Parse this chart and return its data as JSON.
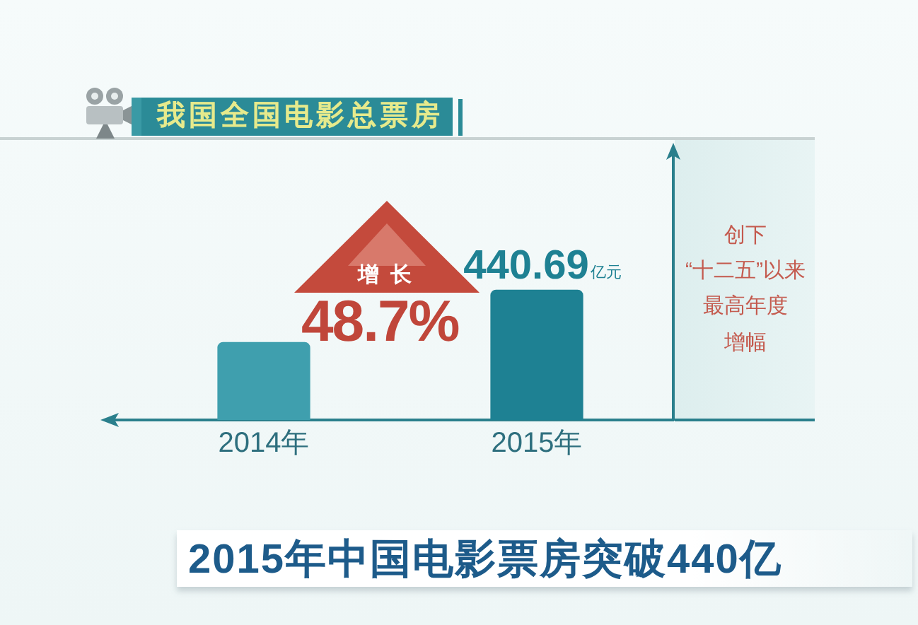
{
  "chart_data": {
    "type": "bar",
    "title": "我国全国电影总票房",
    "categories": [
      "2014年",
      "2015年"
    ],
    "values": [
      264,
      440.69
    ],
    "colors": [
      "#3f9fae",
      "#1e8193"
    ],
    "value_labels": [
      null,
      "440.69亿元"
    ],
    "annotations": [
      "增长",
      "48.7%",
      "创下",
      "“十二五”以来",
      "最高年度",
      "增幅",
      "2015年中国电影票房突破440亿"
    ]
  }
}
